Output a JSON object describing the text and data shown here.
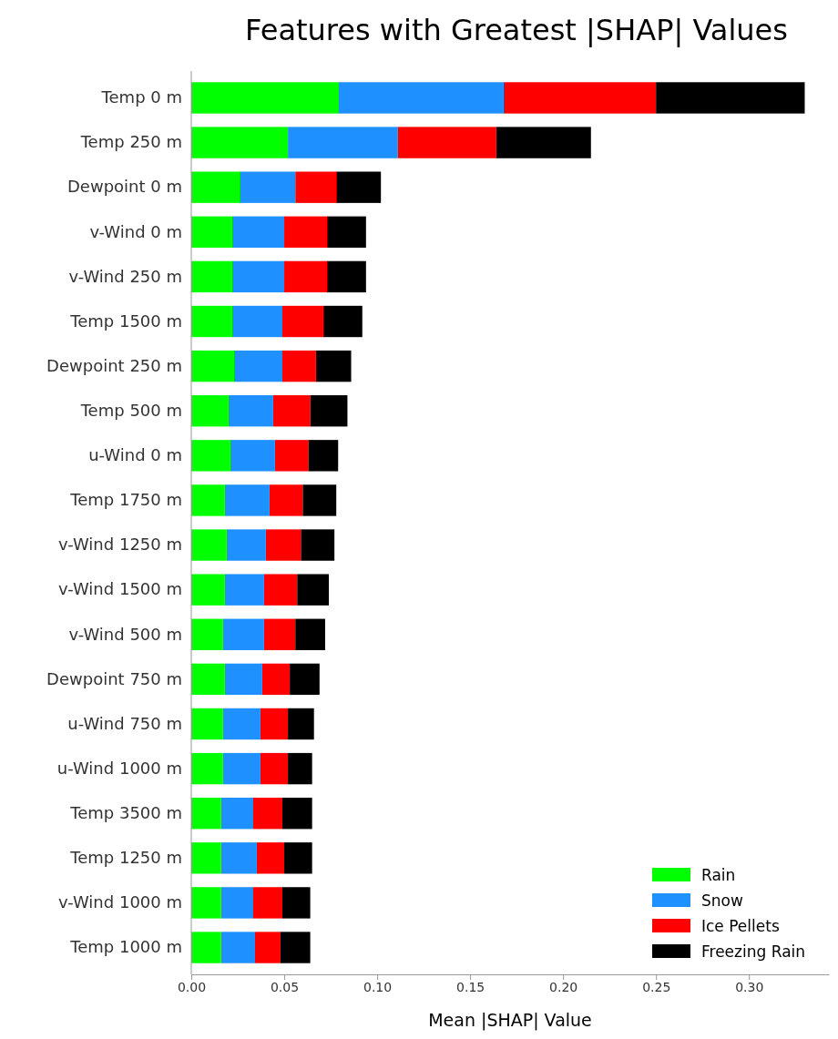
{
  "chart_data": {
    "type": "bar",
    "orientation": "horizontal",
    "stacked": true,
    "title": "Features with Greatest |SHAP| Values",
    "xlabel": "Mean |SHAP| Value",
    "categories": [
      "Temp 0 m",
      "Temp 250 m",
      "Dewpoint 0 m",
      "v-Wind 0 m",
      "v-Wind 250 m",
      "Temp 1500 m",
      "Dewpoint 250 m",
      "Temp 500 m",
      "u-Wind 0 m",
      "Temp 1750 m",
      "v-Wind 1250 m",
      "v-Wind 1500 m",
      "v-Wind 500 m",
      "Dewpoint 750 m",
      "u-Wind 750 m",
      "u-Wind 1000 m",
      "Temp 3500 m",
      "Temp 1250 m",
      "v-Wind 1000 m",
      "Temp 1000 m"
    ],
    "series": [
      {
        "name": "Rain",
        "color": "#00ff00",
        "values": [
          0.079,
          0.052,
          0.026,
          0.022,
          0.022,
          0.022,
          0.023,
          0.02,
          0.021,
          0.018,
          0.019,
          0.018,
          0.017,
          0.018,
          0.017,
          0.017,
          0.016,
          0.016,
          0.016,
          0.016
        ]
      },
      {
        "name": "Snow",
        "color": "#1e90ff",
        "values": [
          0.089,
          0.059,
          0.03,
          0.028,
          0.028,
          0.027,
          0.026,
          0.024,
          0.024,
          0.024,
          0.021,
          0.021,
          0.022,
          0.02,
          0.02,
          0.02,
          0.017,
          0.019,
          0.017,
          0.018
        ]
      },
      {
        "name": "Ice Pellets",
        "color": "#ff0000",
        "values": [
          0.082,
          0.053,
          0.022,
          0.023,
          0.023,
          0.022,
          0.018,
          0.02,
          0.018,
          0.018,
          0.019,
          0.018,
          0.017,
          0.015,
          0.015,
          0.015,
          0.016,
          0.015,
          0.016,
          0.014
        ]
      },
      {
        "name": "Freezing Rain",
        "color": "#000000",
        "values": [
          0.08,
          0.051,
          0.024,
          0.021,
          0.021,
          0.021,
          0.019,
          0.02,
          0.016,
          0.018,
          0.018,
          0.017,
          0.016,
          0.016,
          0.014,
          0.013,
          0.016,
          0.015,
          0.015,
          0.016
        ]
      }
    ],
    "xlim": [
      0,
      0.343
    ],
    "xticks": [
      {
        "value": 0,
        "label": "0.00"
      },
      {
        "value": 0.05,
        "label": "0.05"
      },
      {
        "value": 0.1,
        "label": "0.10"
      },
      {
        "value": 0.15,
        "label": "0.15"
      },
      {
        "value": 0.2,
        "label": "0.20"
      },
      {
        "value": 0.25,
        "label": "0.25"
      },
      {
        "value": 0.3,
        "label": "0.30"
      }
    ],
    "legend": "bottom right",
    "grid": false
  }
}
